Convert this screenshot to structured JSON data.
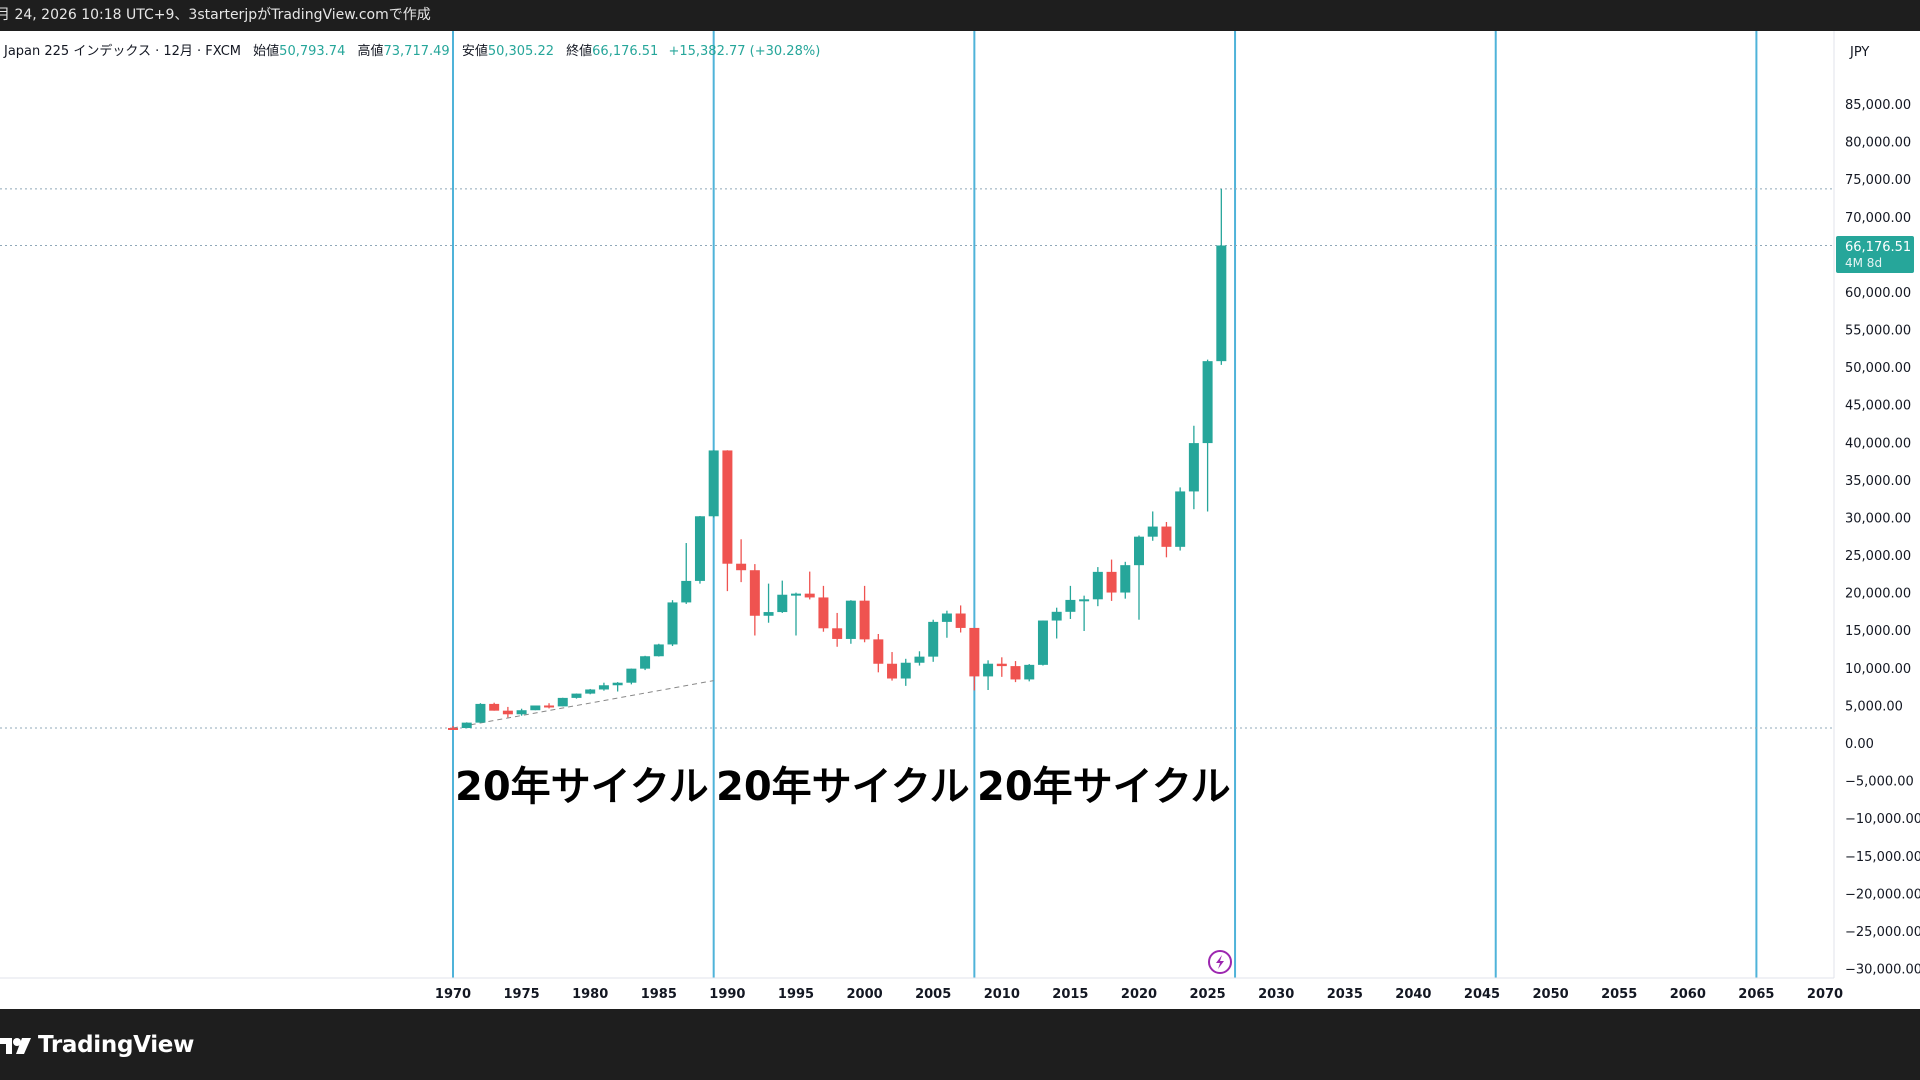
{
  "header": {
    "title": "月 24, 2026 10:18 UTC+9、3starterjpがTradingView.comで作成"
  },
  "legend": {
    "symbol": "Japan 225 インデックス · 12月 · FXCM",
    "open_label": "始値",
    "open": "50,793.74",
    "high_label": "高値",
    "high": "73,717.49",
    "low_label": "安値",
    "low": "50,305.22",
    "close_label": "終値",
    "close": "66,176.51",
    "change": "+15,382.77 (+30.28%)"
  },
  "price_axis": {
    "currency": "JPY",
    "ticks": [
      "85,000.00",
      "80,000.00",
      "75,000.00",
      "70,000.00",
      "60,000.00",
      "55,000.00",
      "50,000.00",
      "45,000.00",
      "40,000.00",
      "35,000.00",
      "30,000.00",
      "25,000.00",
      "20,000.00",
      "15,000.00",
      "10,000.00",
      "5,000.00",
      "0.00",
      "−5,000.00",
      "−10,000.00",
      "−15,000.00",
      "−20,000.00",
      "−25,000.00",
      "−30,000.00"
    ],
    "tick_values": [
      85000,
      80000,
      75000,
      70000,
      60000,
      55000,
      50000,
      45000,
      40000,
      35000,
      30000,
      25000,
      20000,
      15000,
      10000,
      5000,
      0,
      -5000,
      -10000,
      -15000,
      -20000,
      -25000,
      -30000
    ],
    "last_price_label": "66,176.51",
    "countdown_label": "4M 8d"
  },
  "time_axis": {
    "ticks": [
      "1970",
      "1975",
      "1980",
      "1985",
      "1990",
      "1995",
      "2000",
      "2005",
      "2010",
      "2015",
      "2020",
      "2025",
      "2030",
      "2035",
      "2040",
      "2045",
      "2050",
      "2055",
      "2060",
      "2065",
      "2070"
    ]
  },
  "annotations": {
    "cycle_labels": [
      "20年サイクル",
      "20年サイクル",
      "20年サイクル"
    ],
    "cycle_lines_years": [
      1970,
      1989,
      2008,
      2027,
      2046,
      2065
    ]
  },
  "colors": {
    "up": "#26a69a",
    "down": "#ef5350",
    "cycle_line": "#4fb3d9",
    "dotted": "#8fa8b8",
    "last_price_bg": "#26a69a"
  },
  "branding": {
    "logo_text": "TradingView"
  },
  "chart_data": {
    "type": "candlestick",
    "title": "Japan 225 インデックス · 12月 · FXCM",
    "xlabel": "",
    "ylabel": "JPY",
    "xlim": [
      1968,
      2070
    ],
    "ylim": [
      -30000,
      85000
    ],
    "grid": false,
    "series": [
      {
        "x": 1970,
        "o": 2000,
        "h": 2250,
        "l": 1930,
        "c": 1990
      },
      {
        "x": 1971,
        "o": 1990,
        "h": 2750,
        "l": 1960,
        "c": 2710
      },
      {
        "x": 1972,
        "o": 2710,
        "h": 5300,
        "l": 2700,
        "c": 5200
      },
      {
        "x": 1973,
        "o": 5200,
        "h": 5360,
        "l": 4300,
        "c": 4300
      },
      {
        "x": 1974,
        "o": 4300,
        "h": 4800,
        "l": 3400,
        "c": 3820
      },
      {
        "x": 1975,
        "o": 3820,
        "h": 4560,
        "l": 3630,
        "c": 4360
      },
      {
        "x": 1976,
        "o": 4360,
        "h": 4990,
        "l": 4360,
        "c": 4990
      },
      {
        "x": 1977,
        "o": 4990,
        "h": 5290,
        "l": 4600,
        "c": 4870
      },
      {
        "x": 1978,
        "o": 4870,
        "h": 6020,
        "l": 4870,
        "c": 6000
      },
      {
        "x": 1979,
        "o": 6000,
        "h": 6590,
        "l": 5900,
        "c": 6570
      },
      {
        "x": 1980,
        "o": 6570,
        "h": 7190,
        "l": 6480,
        "c": 7120
      },
      {
        "x": 1981,
        "o": 7120,
        "h": 8020,
        "l": 6960,
        "c": 7680
      },
      {
        "x": 1982,
        "o": 7680,
        "h": 8100,
        "l": 6850,
        "c": 8020
      },
      {
        "x": 1983,
        "o": 8020,
        "h": 9900,
        "l": 7800,
        "c": 9890
      },
      {
        "x": 1984,
        "o": 9890,
        "h": 11600,
        "l": 9700,
        "c": 11540
      },
      {
        "x": 1985,
        "o": 11540,
        "h": 13200,
        "l": 11500,
        "c": 13110
      },
      {
        "x": 1986,
        "o": 13110,
        "h": 19000,
        "l": 12900,
        "c": 18700
      },
      {
        "x": 1987,
        "o": 18700,
        "h": 26600,
        "l": 18500,
        "c": 21560
      },
      {
        "x": 1988,
        "o": 21560,
        "h": 30200,
        "l": 21200,
        "c": 30160
      },
      {
        "x": 1989,
        "o": 30160,
        "h": 38957,
        "l": 30000,
        "c": 38916
      },
      {
        "x": 1990,
        "o": 38916,
        "h": 38950,
        "l": 20200,
        "c": 23849
      },
      {
        "x": 1991,
        "o": 23849,
        "h": 27100,
        "l": 21400,
        "c": 22984
      },
      {
        "x": 1992,
        "o": 22984,
        "h": 23800,
        "l": 14300,
        "c": 16925
      },
      {
        "x": 1993,
        "o": 16925,
        "h": 21200,
        "l": 16000,
        "c": 17417
      },
      {
        "x": 1994,
        "o": 17417,
        "h": 21600,
        "l": 17300,
        "c": 19723
      },
      {
        "x": 1995,
        "o": 19723,
        "h": 20000,
        "l": 14300,
        "c": 19868
      },
      {
        "x": 1996,
        "o": 19868,
        "h": 22800,
        "l": 19100,
        "c": 19361
      },
      {
        "x": 1997,
        "o": 19361,
        "h": 20900,
        "l": 14800,
        "c": 15259
      },
      {
        "x": 1998,
        "o": 15259,
        "h": 17300,
        "l": 12800,
        "c": 13842
      },
      {
        "x": 1999,
        "o": 13842,
        "h": 19000,
        "l": 13200,
        "c": 18934
      },
      {
        "x": 2000,
        "o": 18934,
        "h": 20900,
        "l": 13400,
        "c": 13785
      },
      {
        "x": 2001,
        "o": 13785,
        "h": 14500,
        "l": 9400,
        "c": 10542
      },
      {
        "x": 2002,
        "o": 10542,
        "h": 12100,
        "l": 8300,
        "c": 8579
      },
      {
        "x": 2003,
        "o": 8579,
        "h": 11200,
        "l": 7600,
        "c": 10676
      },
      {
        "x": 2004,
        "o": 10676,
        "h": 12200,
        "l": 10300,
        "c": 11488
      },
      {
        "x": 2005,
        "o": 11488,
        "h": 16400,
        "l": 10800,
        "c": 16111
      },
      {
        "x": 2006,
        "o": 16111,
        "h": 17600,
        "l": 14000,
        "c": 17225
      },
      {
        "x": 2007,
        "o": 17225,
        "h": 18300,
        "l": 14700,
        "c": 15307
      },
      {
        "x": 2008,
        "o": 15307,
        "h": 15300,
        "l": 6990,
        "c": 8859
      },
      {
        "x": 2009,
        "o": 8859,
        "h": 11000,
        "l": 7050,
        "c": 10546
      },
      {
        "x": 2010,
        "o": 10546,
        "h": 11400,
        "l": 8800,
        "c": 10228
      },
      {
        "x": 2011,
        "o": 10228,
        "h": 10900,
        "l": 8100,
        "c": 8455
      },
      {
        "x": 2012,
        "o": 8455,
        "h": 10500,
        "l": 8200,
        "c": 10395
      },
      {
        "x": 2013,
        "o": 10395,
        "h": 16300,
        "l": 10300,
        "c": 16291
      },
      {
        "x": 2014,
        "o": 16291,
        "h": 18000,
        "l": 13900,
        "c": 17450
      },
      {
        "x": 2015,
        "o": 17450,
        "h": 20900,
        "l": 16500,
        "c": 19033
      },
      {
        "x": 2016,
        "o": 19033,
        "h": 19600,
        "l": 14900,
        "c": 19114
      },
      {
        "x": 2017,
        "o": 19114,
        "h": 23400,
        "l": 18200,
        "c": 22764
      },
      {
        "x": 2018,
        "o": 22764,
        "h": 24400,
        "l": 18900,
        "c": 20015
      },
      {
        "x": 2019,
        "o": 20015,
        "h": 24100,
        "l": 19200,
        "c": 23656
      },
      {
        "x": 2020,
        "o": 23656,
        "h": 27600,
        "l": 16400,
        "c": 27444
      },
      {
        "x": 2021,
        "o": 27444,
        "h": 30800,
        "l": 26900,
        "c": 28791
      },
      {
        "x": 2022,
        "o": 28791,
        "h": 29400,
        "l": 24700,
        "c": 26094
      },
      {
        "x": 2023,
        "o": 26094,
        "h": 34000,
        "l": 25600,
        "c": 33464
      },
      {
        "x": 2024,
        "o": 33464,
        "h": 42200,
        "l": 31100,
        "c": 39894
      },
      {
        "x": 2025,
        "o": 39894,
        "h": 51000,
        "l": 30800,
        "c": 50794
      },
      {
        "x": 2026,
        "o": 50794,
        "h": 73717,
        "l": 50305,
        "c": 66177
      }
    ],
    "trend_line": {
      "x": [
        1970,
        1989
      ],
      "y": [
        2000,
        8300
      ]
    },
    "horizontal_lines": [
      73717,
      66177,
      2000
    ]
  }
}
